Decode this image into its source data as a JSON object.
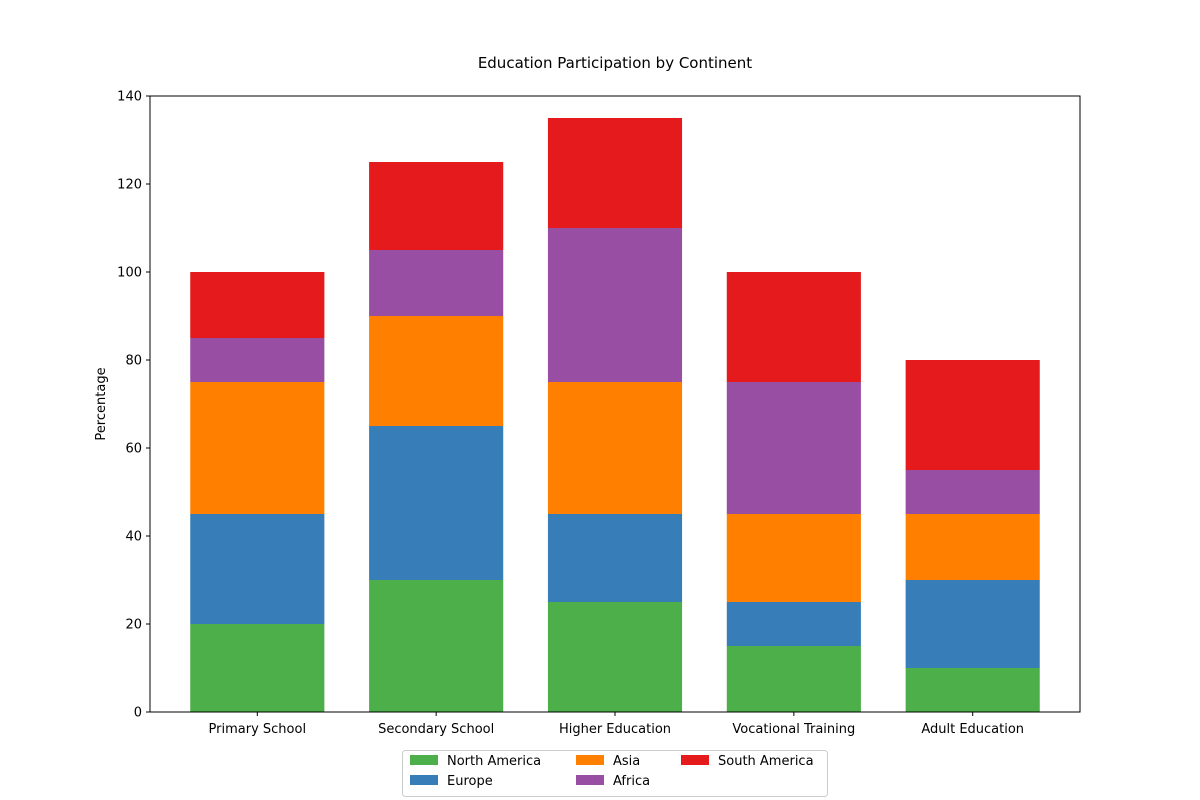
{
  "chart_data": {
    "type": "bar",
    "stacked": true,
    "title": "Education Participation by Continent",
    "xlabel": "",
    "ylabel": "Percentage",
    "categories": [
      "Primary School",
      "Secondary School",
      "Higher Education",
      "Vocational Training",
      "Adult Education"
    ],
    "series": [
      {
        "name": "North America",
        "values": [
          20,
          30,
          25,
          15,
          10
        ],
        "color": "#4daf4a"
      },
      {
        "name": "Europe",
        "values": [
          25,
          35,
          20,
          10,
          20
        ],
        "color": "#377eb8"
      },
      {
        "name": "Asia",
        "values": [
          30,
          25,
          30,
          20,
          15
        ],
        "color": "#ff7f00"
      },
      {
        "name": "Africa",
        "values": [
          10,
          15,
          35,
          30,
          10
        ],
        "color": "#984ea3"
      },
      {
        "name": "South America",
        "values": [
          15,
          20,
          25,
          25,
          25
        ],
        "color": "#e41a1c"
      }
    ],
    "ylim": [
      0,
      140
    ],
    "yticks": [
      0,
      20,
      40,
      60,
      80,
      100,
      120,
      140
    ],
    "grid": false,
    "legend_position": "bottom-center"
  }
}
